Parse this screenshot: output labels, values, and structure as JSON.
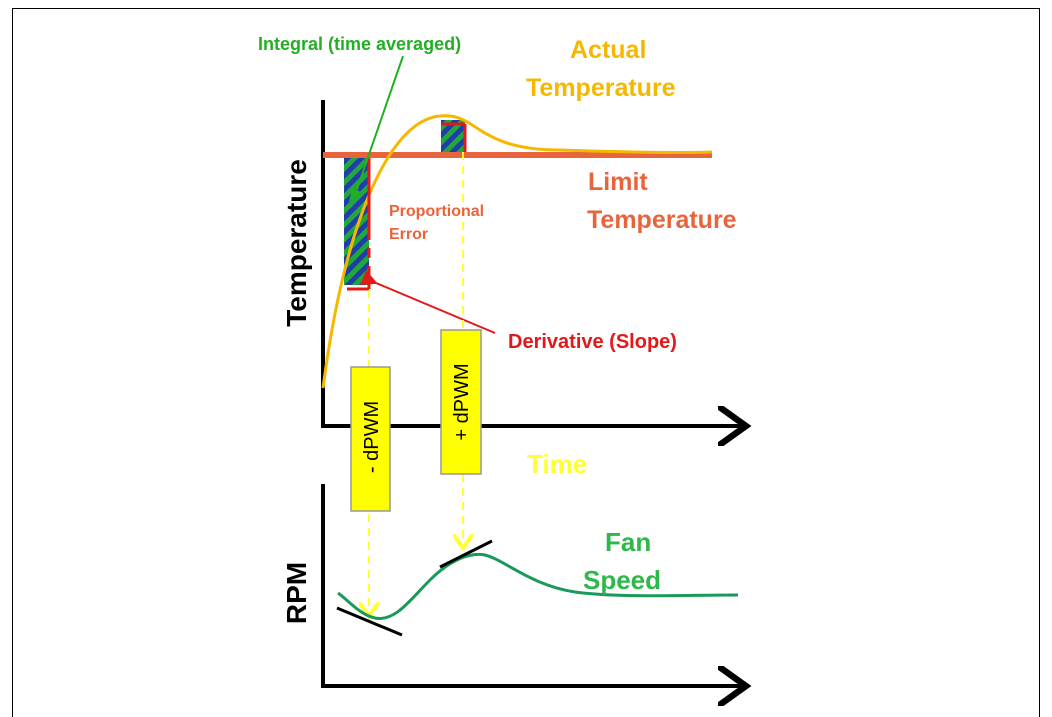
{
  "labels": {
    "integral": "Integral (time averaged)",
    "actual_temperature": [
      "Actual",
      "Temperature"
    ],
    "limit_temperature": [
      "Limit",
      "Temperature"
    ],
    "proportional_error": [
      "Proportional",
      "Error"
    ],
    "derivative": "Derivative (Slope)",
    "time": "Time",
    "fan_speed": [
      "Fan",
      "Speed"
    ],
    "y_axis_top": "Temperature",
    "y_axis_bottom": "RPM",
    "minus_dpwm": "- dPWM",
    "plus_dpwm": "+ dPWM"
  },
  "colors": {
    "actual": "#f5b800",
    "limit": "#e8643c",
    "integral_label": "#22b022",
    "derivative": "#e31818",
    "time": "#ffff33",
    "fan": "#1a9a5a",
    "fan_label": "#2db84a",
    "dpwm_box": "#ffff00",
    "dpwm_arrow": "#ffff33",
    "hatch_blue": "#1f3ea8",
    "hatch_green": "#22a83a"
  }
}
